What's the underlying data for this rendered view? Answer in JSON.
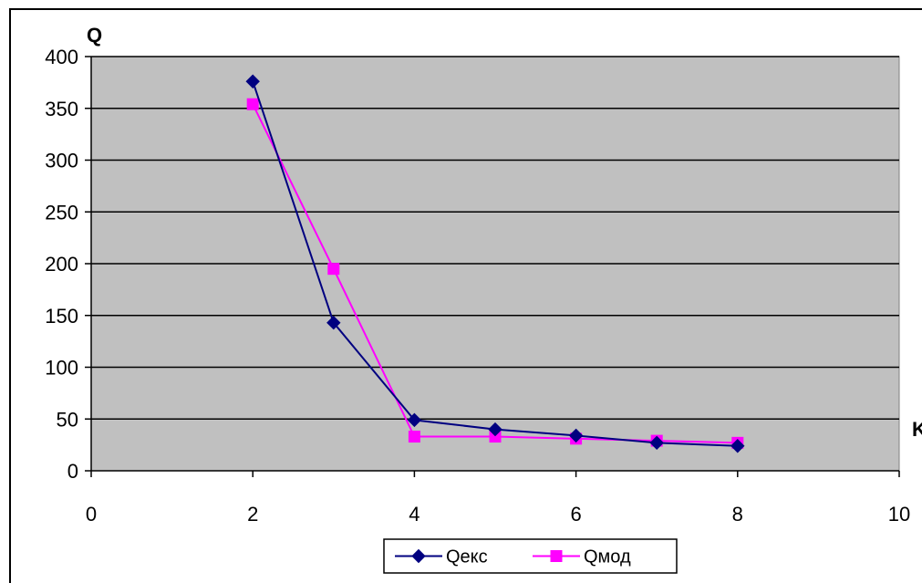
{
  "chart_data": {
    "type": "scatter",
    "title": "",
    "xlabel": "K",
    "ylabel": "Q",
    "xlim": [
      0,
      10
    ],
    "ylim": [
      0,
      400
    ],
    "xticks": [
      0,
      2,
      4,
      6,
      8,
      10
    ],
    "yticks": [
      0,
      50,
      100,
      150,
      200,
      250,
      300,
      350,
      400
    ],
    "grid": "horizontal",
    "plot_background": "#c0c0c0",
    "legend_position": "bottom-center",
    "series": [
      {
        "name": "Qекс",
        "color": "#000080",
        "marker": "diamond",
        "x": [
          2,
          3,
          4,
          5,
          6,
          7,
          8
        ],
        "y": [
          376,
          143,
          49,
          40,
          34,
          27,
          24
        ]
      },
      {
        "name": "Qмод",
        "color": "#ff00ff",
        "marker": "square",
        "x": [
          2,
          3,
          4,
          5,
          6,
          7,
          8
        ],
        "y": [
          354,
          195,
          33,
          33,
          31,
          29,
          27
        ]
      }
    ]
  }
}
